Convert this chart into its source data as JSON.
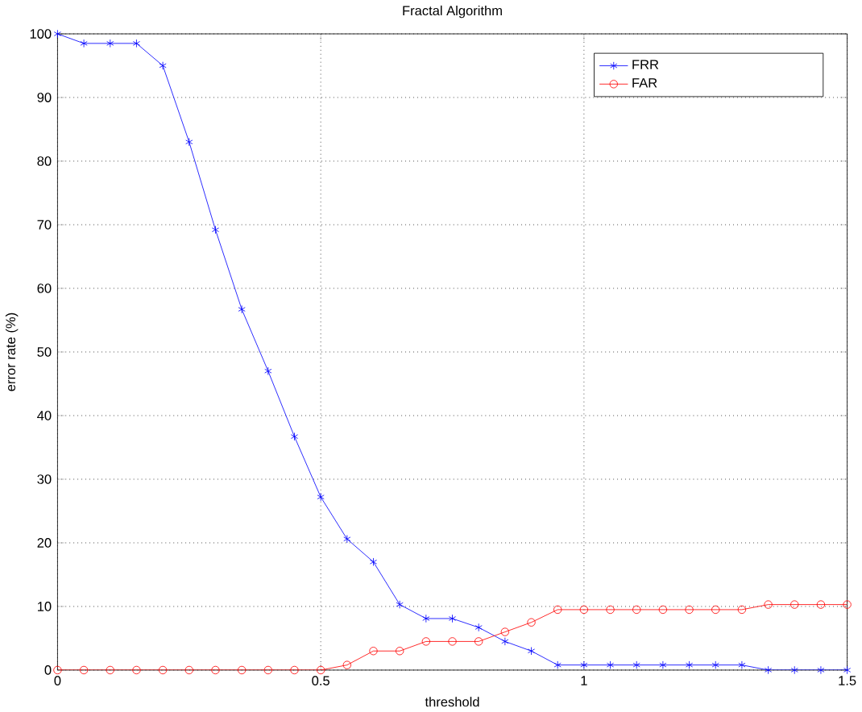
{
  "chart_data": {
    "type": "line",
    "title": "Fractal Algorithm",
    "xlabel": "threshold",
    "ylabel": "error rate (%)",
    "xlim": [
      0,
      1.5
    ],
    "ylim": [
      0,
      100
    ],
    "xticks": [
      0,
      0.5,
      1,
      1.5
    ],
    "yticks": [
      0,
      10,
      20,
      30,
      40,
      50,
      60,
      70,
      80,
      90,
      100
    ],
    "grid": true,
    "legend": "top right",
    "line_style": "solid",
    "x": [
      0,
      0.05,
      0.1,
      0.15,
      0.2,
      0.25,
      0.3,
      0.35,
      0.4,
      0.45,
      0.5,
      0.55,
      0.6,
      0.65,
      0.7,
      0.75,
      0.8,
      0.85,
      0.9,
      0.95,
      1.0,
      1.05,
      1.1,
      1.15,
      1.2,
      1.25,
      1.3,
      1.35,
      1.4,
      1.45,
      1.5
    ],
    "series": [
      {
        "name": "FRR",
        "color": "#0000ff",
        "marker": "cross",
        "values": [
          100,
          98.5,
          98.5,
          98.5,
          95,
          83,
          69.2,
          56.7,
          47,
          36.7,
          27.2,
          20.6,
          17,
          10.3,
          8.1,
          8.1,
          6.7,
          4.5,
          3,
          0.8,
          0.8,
          0.8,
          0.8,
          0.8,
          0.8,
          0.8,
          0.8,
          0,
          0,
          0,
          0
        ]
      },
      {
        "name": "FAR",
        "color": "#ff0000",
        "marker": "circle",
        "values": [
          0,
          0,
          0,
          0,
          0,
          0,
          0,
          0,
          0,
          0,
          0,
          0.8,
          3,
          3,
          4.5,
          4.5,
          4.5,
          6,
          7.5,
          9.5,
          9.5,
          9.5,
          9.5,
          9.5,
          9.5,
          9.5,
          9.5,
          10.3,
          10.3,
          10.3,
          10.3
        ]
      }
    ]
  }
}
